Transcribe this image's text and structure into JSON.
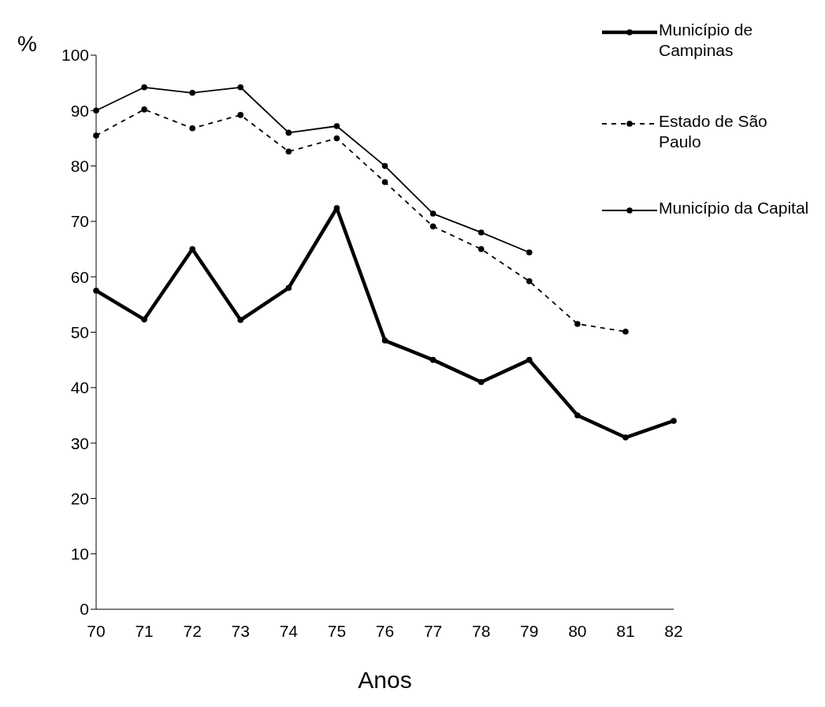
{
  "chart_data": {
    "type": "line",
    "xlabel": "Anos",
    "ylabel": "%",
    "categories": [
      "70",
      "71",
      "72",
      "73",
      "74",
      "75",
      "76",
      "77",
      "78",
      "79",
      "80",
      "81",
      "82"
    ],
    "series": [
      {
        "name": "Município de Campinas",
        "color": "#000000",
        "line_style": "solid",
        "values": [
          57.5,
          52.3,
          65,
          52.2,
          58,
          72.4,
          48.5,
          45,
          41,
          45,
          35,
          31,
          34
        ]
      },
      {
        "name": "Estado de São Paulo",
        "color": "#000000",
        "line_style": "dashed",
        "values": [
          85.5,
          90.2,
          86.8,
          89.2,
          82.6,
          85,
          77.1,
          69.1,
          65,
          59.2,
          51.5,
          50.1,
          null
        ]
      },
      {
        "name": "Município da Capital",
        "color": "#000000",
        "line_style": "solid",
        "values": [
          90,
          94.2,
          93.2,
          94.2,
          86,
          87.2,
          80,
          71.4,
          68,
          64.4,
          null,
          null,
          null
        ]
      }
    ],
    "ylim": [
      0,
      100
    ],
    "yticks": [
      0,
      10,
      20,
      30,
      40,
      50,
      60,
      70,
      80,
      90,
      100
    ],
    "grid": false,
    "legend": "top right",
    "marker": "circle"
  }
}
